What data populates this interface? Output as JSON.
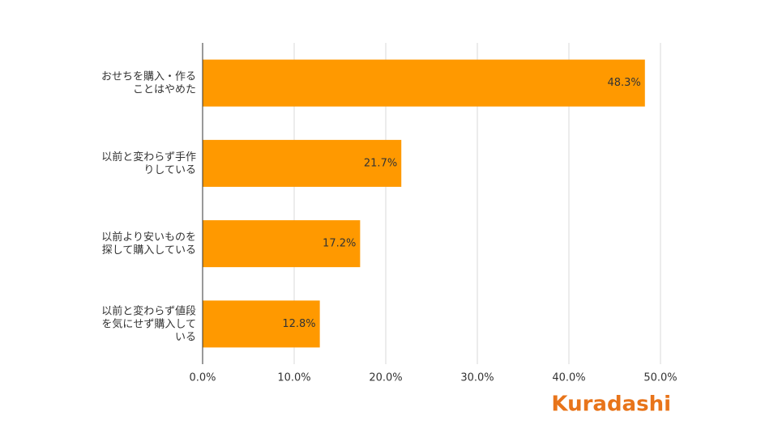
{
  "chart_data": {
    "type": "bar",
    "orientation": "horizontal",
    "categories": [
      "おせちを購入・作る\nことはやめた",
      "以前と変わらず手作\nりしている",
      "以前より安いものを\n探して購入している",
      "以前と変わらず値段\nを気にせず購入して\nいる"
    ],
    "values": [
      48.3,
      21.7,
      17.2,
      12.8
    ],
    "value_labels": [
      "48.3%",
      "21.7%",
      "17.2%",
      "12.8%"
    ],
    "color": "#ff9900",
    "xlim": [
      0,
      50
    ],
    "xticks": [
      {
        "value": 0,
        "label": "0.0%"
      },
      {
        "value": 10,
        "label": "10.0%"
      },
      {
        "value": 20,
        "label": "20.0%"
      },
      {
        "value": 30,
        "label": "30.0%"
      },
      {
        "value": 40,
        "label": "40.0%"
      },
      {
        "value": 50,
        "label": "50.0%"
      }
    ],
    "grid": true
  },
  "brand": "Kuradashi"
}
